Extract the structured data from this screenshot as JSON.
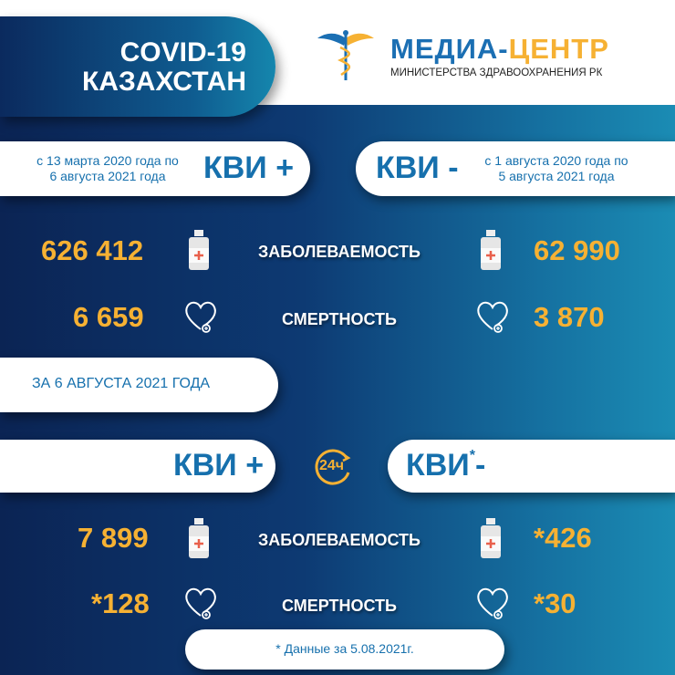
{
  "header": {
    "title_line1": "COVID-19",
    "title_line2": "КАЗАХСТАН",
    "logo_main": "МЕДИА-",
    "logo_accent": "ЦЕНТР",
    "logo_sub": "МИНИСТЕРСТВА ЗДРАВООХРАНЕНИЯ РК"
  },
  "cumulative": {
    "left": {
      "period_line1": "с 13 марта 2020 года по",
      "period_line2": "6 августа 2021 года",
      "label": "КВИ +",
      "cases": "626 412",
      "deaths": "6 659"
    },
    "right": {
      "period_line1": "с 1 августа 2020 года по",
      "period_line2": "5 августа 2021 года",
      "label": "КВИ -",
      "cases": "62 990",
      "deaths": "3 870"
    }
  },
  "labels": {
    "cases": "ЗАБОЛЕВАЕМОСТЬ",
    "deaths": "СМЕРТНОСТЬ"
  },
  "daily": {
    "date_label": "ЗА 6 АВГУСТА 2021 ГОДА",
    "icon_text": "24ч",
    "left": {
      "label": "КВИ +",
      "cases": "7 899",
      "deaths": "*128"
    },
    "right": {
      "label": "КВИ",
      "label_star": "*",
      "label_sign": "-",
      "cases": "*426",
      "deaths": "*30"
    },
    "footnote": "* Данные за 5.08.2021г."
  },
  "colors": {
    "accent": "#f6b133",
    "brand_blue": "#1670ad",
    "navy": "#0b2454"
  },
  "icons": [
    "caduceus-logo",
    "medicine-bottle-icon",
    "heart-icon",
    "24h-clock-icon"
  ]
}
